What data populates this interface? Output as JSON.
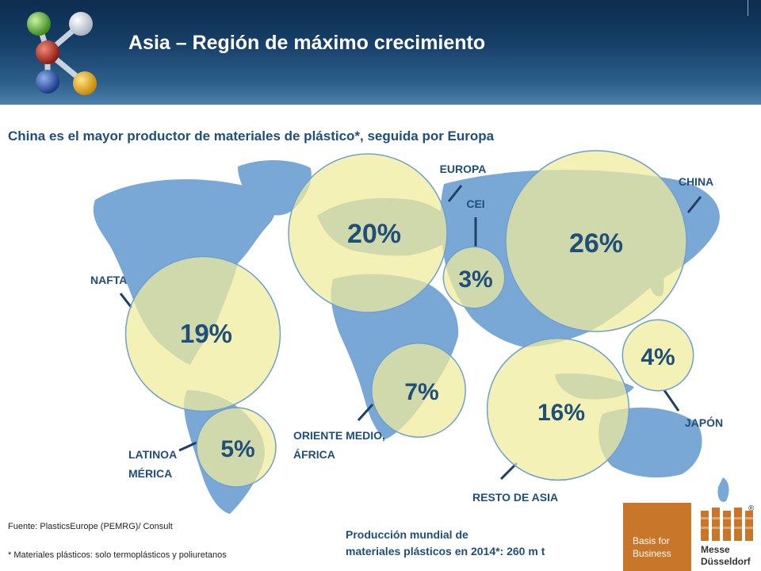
{
  "header": {
    "title": "Asia – Región de máximo crecimiento"
  },
  "subtitle": "China es el mayor productor de materiales de plástico*, seguida por Europa",
  "chart_data": {
    "type": "bubble-map",
    "title": "Producción mundial de materiales plásticos en 2014*: 260 m t",
    "unit": "%",
    "regions": [
      {
        "name": "CHINA",
        "value": 26
      },
      {
        "name": "EUROPA",
        "value": 20
      },
      {
        "name": "NAFTA",
        "value": 19
      },
      {
        "name": "RESTO DE ASIA",
        "value": 16
      },
      {
        "name": "ORIENTE MEDIO, ÁFRICA",
        "value": 7
      },
      {
        "name": "LATINOAMÉRICA",
        "value": 5
      },
      {
        "name": "JAPÓN",
        "value": 4
      },
      {
        "name": "CEI",
        "value": 3
      }
    ],
    "bubble_color": "#f0ec9a",
    "map_color": "#7aa8d6"
  },
  "labels": {
    "china": "CHINA",
    "europa": "EUROPA",
    "cei": "CEI",
    "nafta": "NAFTA",
    "japon": "JAPÓN",
    "resto_asia": "RESTO DE ASIA",
    "oriente_1": "ORIENTE MEDIO,",
    "oriente_2": "ÁFRICA",
    "latino_1": "LATINOA",
    "latino_2": "MÉRICA"
  },
  "footer": {
    "source": "Fuente: PlasticsEurope (PEMRG)/ Consult",
    "note": "* Materiales plásticos: solo termoplásticos y poliuretanos",
    "production_line1": "Producción mundial de",
    "production_line2": "materiales plásticos en 2014*: 260 m t"
  },
  "brand": {
    "basis_line1": "Basis for",
    "basis_line2": "Business",
    "messe_line1": "Messe",
    "messe_line2": "Düsseldorf",
    "reg": "®"
  }
}
